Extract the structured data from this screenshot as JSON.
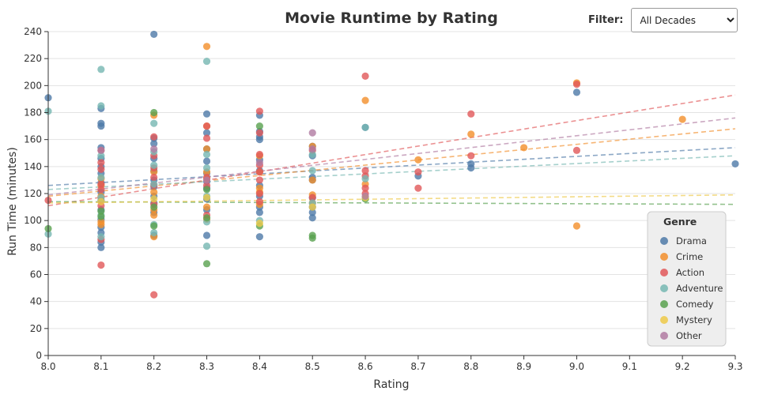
{
  "filter": {
    "label": "Filter:",
    "selected": "All Decades"
  },
  "colors": {
    "Drama": "#4e79a7",
    "Crime": "#f28e2b",
    "Action": "#e15759",
    "Adventure": "#76b7b2",
    "Comedy": "#59a14f",
    "Mystery": "#edc948",
    "Other": "#b07aa1"
  },
  "chart_data": {
    "type": "scatter",
    "title": "Movie Runtime by Rating",
    "xlabel": "Rating",
    "ylabel": "Run Time (minutes)",
    "xlim": [
      8.0,
      9.3
    ],
    "ylim": [
      0,
      240
    ],
    "x_ticks": [
      "8.0",
      "8.1",
      "8.2",
      "8.3",
      "8.4",
      "8.5",
      "8.6",
      "8.7",
      "8.8",
      "8.9",
      "9.0",
      "9.1",
      "9.2",
      "9.3"
    ],
    "y_ticks": [
      "0",
      "20",
      "40",
      "60",
      "80",
      "100",
      "120",
      "140",
      "160",
      "180",
      "200",
      "220",
      "240"
    ],
    "grid": "horizontal",
    "legend": {
      "title": "Genre",
      "position": "bottom-right",
      "entries": [
        "Drama",
        "Crime",
        "Action",
        "Adventure",
        "Comedy",
        "Mystery",
        "Other"
      ]
    },
    "series": [
      {
        "name": "Drama",
        "points": [
          [
            8.0,
            191
          ],
          [
            8.1,
            183
          ],
          [
            8.1,
            172
          ],
          [
            8.1,
            170
          ],
          [
            8.1,
            154
          ],
          [
            8.1,
            146
          ],
          [
            8.1,
            140
          ],
          [
            8.1,
            135
          ],
          [
            8.1,
            128
          ],
          [
            8.1,
            121
          ],
          [
            8.1,
            115
          ],
          [
            8.1,
            108
          ],
          [
            8.1,
            101
          ],
          [
            8.1,
            95
          ],
          [
            8.1,
            91
          ],
          [
            8.1,
            84
          ],
          [
            8.1,
            80
          ],
          [
            8.2,
            238
          ],
          [
            8.2,
            161
          ],
          [
            8.2,
            157
          ],
          [
            8.2,
            146
          ],
          [
            8.2,
            137
          ],
          [
            8.2,
            130
          ],
          [
            8.2,
            125
          ],
          [
            8.2,
            118
          ],
          [
            8.2,
            113
          ],
          [
            8.2,
            106
          ],
          [
            8.2,
            89
          ],
          [
            8.3,
            179
          ],
          [
            8.3,
            165
          ],
          [
            8.3,
            153
          ],
          [
            8.3,
            144
          ],
          [
            8.3,
            135
          ],
          [
            8.3,
            129
          ],
          [
            8.3,
            124
          ],
          [
            8.3,
            116
          ],
          [
            8.3,
            108
          ],
          [
            8.3,
            89
          ],
          [
            8.4,
            178
          ],
          [
            8.4,
            166
          ],
          [
            8.4,
            162
          ],
          [
            8.4,
            160
          ],
          [
            8.4,
            145
          ],
          [
            8.4,
            137
          ],
          [
            8.4,
            126
          ],
          [
            8.4,
            118
          ],
          [
            8.4,
            110
          ],
          [
            8.4,
            106
          ],
          [
            8.4,
            88
          ],
          [
            8.5,
            155
          ],
          [
            8.5,
            148
          ],
          [
            8.5,
            132
          ],
          [
            8.5,
            130
          ],
          [
            8.5,
            117
          ],
          [
            8.5,
            110
          ],
          [
            8.5,
            106
          ],
          [
            8.5,
            102
          ],
          [
            8.6,
            169
          ],
          [
            8.7,
            133
          ],
          [
            8.8,
            142
          ],
          [
            8.8,
            139
          ],
          [
            9.0,
            195
          ],
          [
            9.3,
            142
          ]
        ]
      },
      {
        "name": "Crime",
        "points": [
          [
            8.1,
            131
          ],
          [
            8.1,
            126
          ],
          [
            8.1,
            118
          ],
          [
            8.1,
            99
          ],
          [
            8.1,
            97
          ],
          [
            8.2,
            178
          ],
          [
            8.2,
            136
          ],
          [
            8.2,
            121
          ],
          [
            8.2,
            108
          ],
          [
            8.2,
            104
          ],
          [
            8.2,
            88
          ],
          [
            8.3,
            229
          ],
          [
            8.3,
            170
          ],
          [
            8.3,
            153
          ],
          [
            8.3,
            136
          ],
          [
            8.3,
            131
          ],
          [
            8.3,
            110
          ],
          [
            8.3,
            101
          ],
          [
            8.4,
            148
          ],
          [
            8.4,
            136
          ],
          [
            8.4,
            124
          ],
          [
            8.4,
            121
          ],
          [
            8.4,
            112
          ],
          [
            8.5,
            155
          ],
          [
            8.5,
            130
          ],
          [
            8.5,
            119
          ],
          [
            8.5,
            113
          ],
          [
            8.6,
            189
          ],
          [
            8.6,
            127
          ],
          [
            8.7,
            145
          ],
          [
            8.8,
            164
          ],
          [
            8.9,
            154
          ],
          [
            9.0,
            202
          ],
          [
            9.0,
            96
          ],
          [
            9.2,
            175
          ]
        ]
      },
      {
        "name": "Action",
        "points": [
          [
            8.0,
            115
          ],
          [
            8.1,
            152
          ],
          [
            8.1,
            143
          ],
          [
            8.1,
            138
          ],
          [
            8.1,
            127
          ],
          [
            8.1,
            123
          ],
          [
            8.1,
            111
          ],
          [
            8.1,
            86
          ],
          [
            8.1,
            67
          ],
          [
            8.2,
            162
          ],
          [
            8.2,
            148
          ],
          [
            8.2,
            139
          ],
          [
            8.2,
            132
          ],
          [
            8.2,
            126
          ],
          [
            8.2,
            112
          ],
          [
            8.2,
            45
          ],
          [
            8.3,
            170
          ],
          [
            8.3,
            161
          ],
          [
            8.3,
            132
          ],
          [
            8.3,
            126
          ],
          [
            8.3,
            104
          ],
          [
            8.4,
            181
          ],
          [
            8.4,
            165
          ],
          [
            8.4,
            149
          ],
          [
            8.4,
            141
          ],
          [
            8.4,
            136
          ],
          [
            8.4,
            130
          ],
          [
            8.4,
            120
          ],
          [
            8.4,
            114
          ],
          [
            8.5,
            152
          ],
          [
            8.5,
            117
          ],
          [
            8.6,
            207
          ],
          [
            8.6,
            137
          ],
          [
            8.6,
            133
          ],
          [
            8.6,
            124
          ],
          [
            8.6,
            120
          ],
          [
            8.7,
            136
          ],
          [
            8.7,
            124
          ],
          [
            8.8,
            179
          ],
          [
            8.8,
            148
          ],
          [
            9.0,
            201
          ],
          [
            9.0,
            152
          ]
        ]
      },
      {
        "name": "Adventure",
        "points": [
          [
            8.0,
            181
          ],
          [
            8.0,
            90
          ],
          [
            8.1,
            212
          ],
          [
            8.1,
            185
          ],
          [
            8.1,
            148
          ],
          [
            8.1,
            132
          ],
          [
            8.1,
            117
          ],
          [
            8.1,
            104
          ],
          [
            8.1,
            88
          ],
          [
            8.2,
            172
          ],
          [
            8.2,
            151
          ],
          [
            8.2,
            141
          ],
          [
            8.2,
            127
          ],
          [
            8.2,
            97
          ],
          [
            8.2,
            91
          ],
          [
            8.3,
            218
          ],
          [
            8.3,
            149
          ],
          [
            8.3,
            139
          ],
          [
            8.3,
            118
          ],
          [
            8.3,
            99
          ],
          [
            8.3,
            81
          ],
          [
            8.4,
            100
          ],
          [
            8.5,
            149
          ],
          [
            8.5,
            137
          ],
          [
            8.5,
            113
          ],
          [
            8.6,
            169
          ],
          [
            8.6,
            131
          ]
        ]
      },
      {
        "name": "Comedy",
        "points": [
          [
            8.0,
            94
          ],
          [
            8.1,
            107
          ],
          [
            8.1,
            103
          ],
          [
            8.2,
            180
          ],
          [
            8.2,
            110
          ],
          [
            8.2,
            96
          ],
          [
            8.3,
            123
          ],
          [
            8.3,
            102
          ],
          [
            8.3,
            68
          ],
          [
            8.4,
            170
          ],
          [
            8.4,
            96
          ],
          [
            8.5,
            89
          ],
          [
            8.5,
            87
          ],
          [
            8.6,
            116
          ]
        ]
      },
      {
        "name": "Mystery",
        "points": [
          [
            8.1,
            114
          ],
          [
            8.2,
            116
          ],
          [
            8.3,
            117
          ],
          [
            8.4,
            98
          ],
          [
            8.5,
            110
          ],
          [
            8.6,
            117
          ]
        ]
      },
      {
        "name": "Other",
        "points": [
          [
            8.1,
            152
          ],
          [
            8.2,
            153
          ],
          [
            8.3,
            130
          ],
          [
            8.4,
            143
          ],
          [
            8.5,
            165
          ],
          [
            8.5,
            153
          ],
          [
            8.6,
            118
          ]
        ]
      }
    ],
    "trendlines": [
      {
        "name": "Drama",
        "x": [
          8.0,
          9.3
        ],
        "y": [
          126,
          154
        ]
      },
      {
        "name": "Crime",
        "x": [
          8.0,
          9.3
        ],
        "y": [
          118,
          168
        ]
      },
      {
        "name": "Action",
        "x": [
          8.0,
          9.3
        ],
        "y": [
          111,
          193
        ]
      },
      {
        "name": "Adventure",
        "x": [
          8.0,
          9.3
        ],
        "y": [
          123,
          148
        ]
      },
      {
        "name": "Comedy",
        "x": [
          8.0,
          9.3
        ],
        "y": [
          114,
          112
        ]
      },
      {
        "name": "Mystery",
        "x": [
          8.0,
          9.3
        ],
        "y": [
          113,
          119
        ]
      },
      {
        "name": "Other",
        "x": [
          8.0,
          9.3
        ],
        "y": [
          119,
          176
        ]
      }
    ]
  }
}
